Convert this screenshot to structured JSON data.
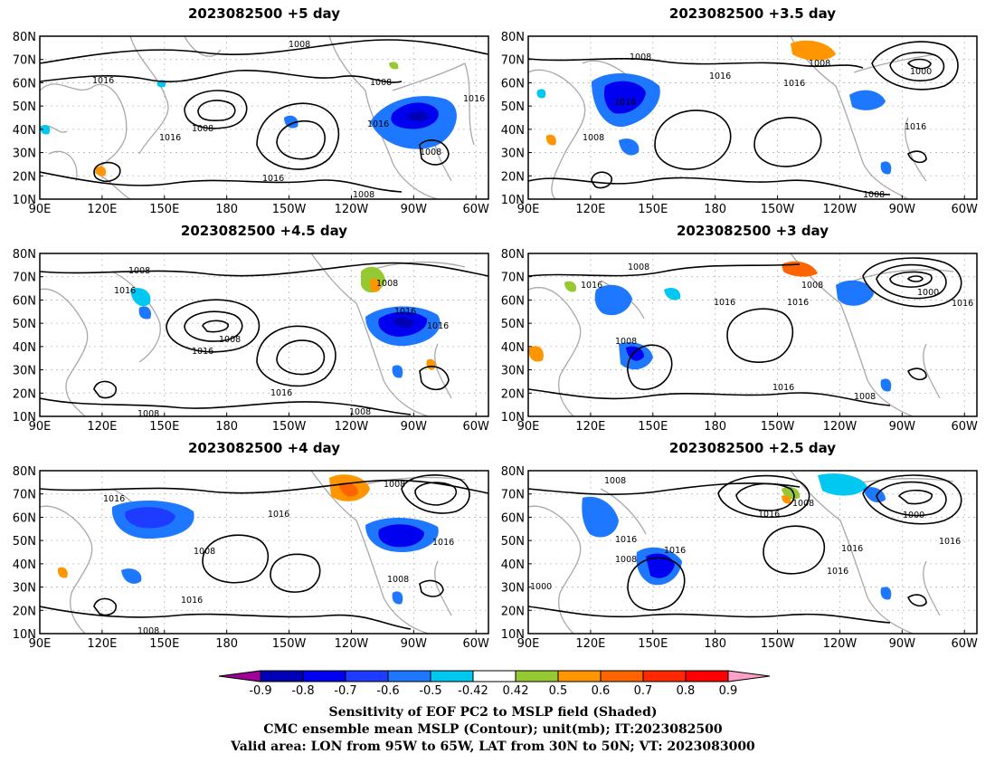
{
  "panels": [
    {
      "title": "2023082500 +5 day",
      "contour_labels": [
        "1008",
        "1016",
        "1008",
        "1016",
        "1008",
        "1016",
        "1016",
        "1008",
        "1016",
        "1008"
      ]
    },
    {
      "title": "2023082500 +3.5 day",
      "contour_labels": [
        "1008",
        "1008",
        "1000",
        "1016",
        "1016",
        "1008",
        "1016",
        "1016",
        "1008"
      ]
    },
    {
      "title": "2023082500 +4.5 day",
      "contour_labels": [
        "1008",
        "1016",
        "1008",
        "1008",
        "1016",
        "1016",
        "1016",
        "1016",
        "1008",
        "1008"
      ]
    },
    {
      "title": "2023082500 +3 day",
      "contour_labels": [
        "1008",
        "1016",
        "1008",
        "1016",
        "1000",
        "1016",
        "1008",
        "1016",
        "1016",
        "1008"
      ]
    },
    {
      "title": "2023082500 +4 day",
      "contour_labels": [
        "1016",
        "1008",
        "1016",
        "1008",
        "1016",
        "1016",
        "1008",
        "1008"
      ]
    },
    {
      "title": "2023082500 +2.5 day",
      "contour_labels": [
        "1008",
        "1016",
        "1008",
        "1000",
        "1016",
        "1016",
        "1008",
        "1016",
        "1016",
        "1000",
        "1016"
      ]
    }
  ],
  "axes": {
    "lat_labels": [
      "80N",
      "70N",
      "60N",
      "50N",
      "40N",
      "30N",
      "20N",
      "10N"
    ],
    "lon_labels": [
      "90E",
      "120E",
      "150E",
      "180",
      "150W",
      "120W",
      "90W",
      "60W"
    ]
  },
  "colorbar": {
    "tick_labels": [
      "-0.9",
      "-0.8",
      "-0.7",
      "-0.6",
      "-0.5",
      "-0.42",
      "0.42",
      "0.5",
      "0.6",
      "0.7",
      "0.8",
      "0.9"
    ],
    "colors": [
      "#a0009a",
      "#0000b4",
      "#0000f0",
      "#1e3cff",
      "#1e78ff",
      "#00c8f0",
      "#ffffff",
      "#96c832",
      "#ff9600",
      "#ff6400",
      "#ff2800",
      "#ff0000",
      "#ffa0c8"
    ]
  },
  "caption": {
    "line1": "Sensitivity of EOF PC2 to MSLP field (Shaded)",
    "line2": "CMC ensemble mean MSLP (Contour); unit(mb); IT:2023082500",
    "line3": "Valid area: LON from 95W to 65W, LAT from 30N to 50N; VT: 2023083000"
  }
}
